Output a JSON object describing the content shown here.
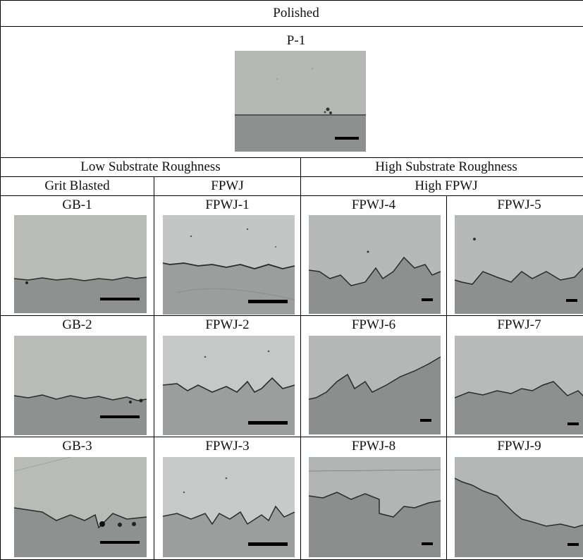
{
  "table": {
    "polished_header": "Polished",
    "polished_sample": "P-1",
    "low_roughness_header": "Low Substrate Roughness",
    "high_roughness_header": "High Substrate Roughness",
    "grit_blasted_header": "Grit Blasted",
    "fpwj_header": "FPWJ",
    "high_fpwj_header": "High FPWJ"
  },
  "samples": [
    "GB-1",
    "FPWJ-1",
    "FPWJ-4",
    "FPWJ-5",
    "GB-2",
    "FPWJ-2",
    "FPWJ-6",
    "FPWJ-7",
    "GB-3",
    "FPWJ-3",
    "FPWJ-8",
    "FPWJ-9"
  ],
  "colors": {
    "coating": "#b9bbb9",
    "substrate": "#8f9190",
    "interface": "#2a2a2a",
    "scale_bar": "#000000"
  }
}
